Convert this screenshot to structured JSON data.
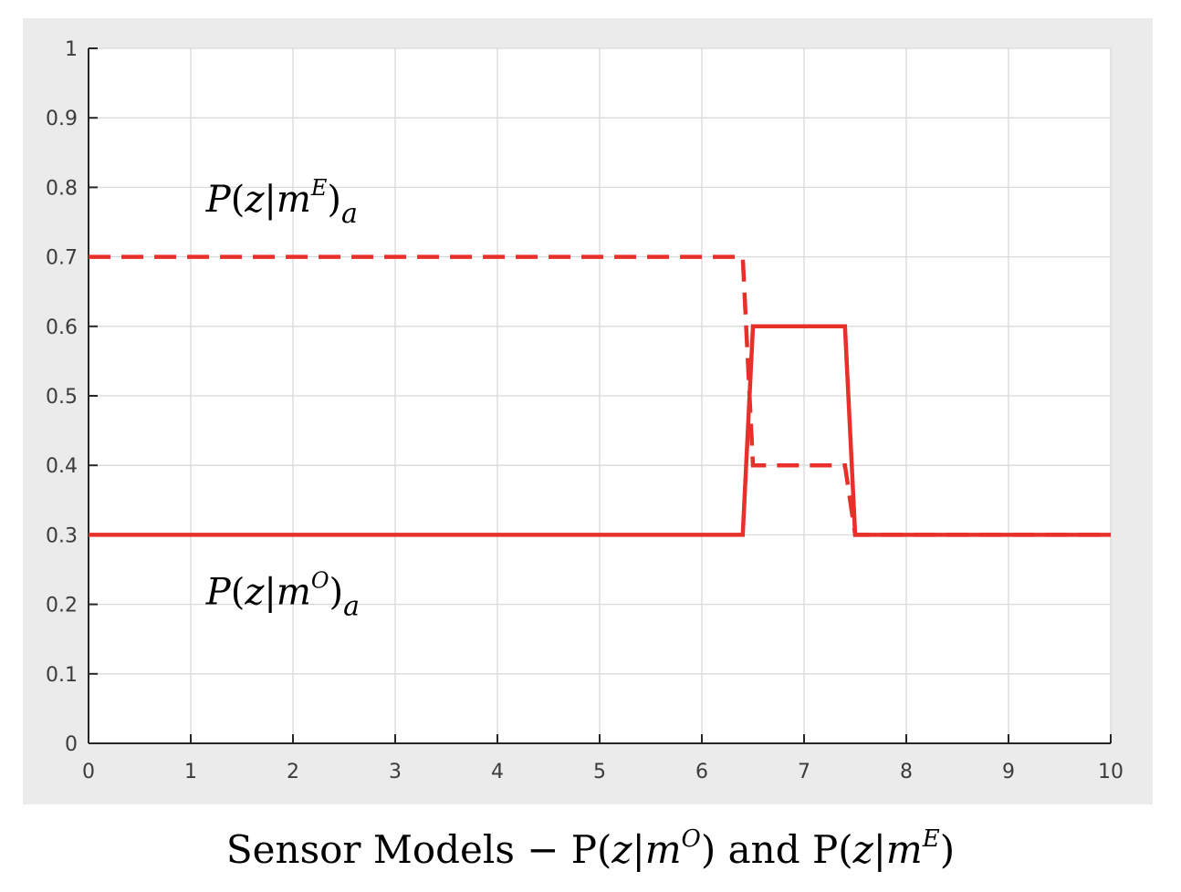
{
  "caption": {
    "prefix": "Sensor Models  − P(",
    "z1": "z",
    "bar1": "|",
    "m1": "m",
    "sup1": "O",
    "mid": ") and P(",
    "z2": "z",
    "bar2": "|",
    "m2": "m",
    "sup2": "E",
    "suffix": ")"
  },
  "colors": {
    "series": "#e8302a",
    "grid": "#d9d9d9",
    "plot_bg": "#ffffff",
    "panel_bg": "#ebebeb",
    "axis": "#262626"
  },
  "chart_data": {
    "type": "line",
    "xlim": [
      0,
      10
    ],
    "ylim": [
      0,
      1
    ],
    "x_ticks": [
      0,
      1,
      2,
      3,
      4,
      5,
      6,
      7,
      8,
      9,
      10
    ],
    "x_tick_labels": [
      "0",
      "1",
      "2",
      "3",
      "4",
      "5",
      "6",
      "7",
      "8",
      "9",
      "10"
    ],
    "y_ticks": [
      0,
      0.1,
      0.2,
      0.3,
      0.4,
      0.5,
      0.6,
      0.7,
      0.8,
      0.9,
      1
    ],
    "y_tick_labels": [
      "0",
      "0.1",
      "0.2",
      "0.3",
      "0.4",
      "0.5",
      "0.6",
      "0.7",
      "0.8",
      "0.9",
      "1"
    ],
    "grid": true,
    "series": [
      {
        "style": "dashed",
        "x": [
          0,
          6.4,
          6.5,
          7.4,
          7.5,
          10
        ],
        "y": [
          0.7,
          0.7,
          0.4,
          0.4,
          0.3,
          0.3
        ]
      },
      {
        "style": "solid",
        "x": [
          0,
          6.4,
          6.5,
          7.4,
          7.5,
          10
        ],
        "y": [
          0.3,
          0.3,
          0.6,
          0.6,
          0.3,
          0.3
        ]
      }
    ],
    "annotations": [
      {
        "P": "P",
        "open": "(z|m",
        "sup": "E",
        "close": ")",
        "sub": "a",
        "anchor_x": 1.15,
        "anchor_y": 0.765
      },
      {
        "P": "P",
        "open": "(z|m",
        "sup": "O",
        "close": ")",
        "sub": "a",
        "anchor_x": 1.15,
        "anchor_y": 0.2
      }
    ]
  }
}
